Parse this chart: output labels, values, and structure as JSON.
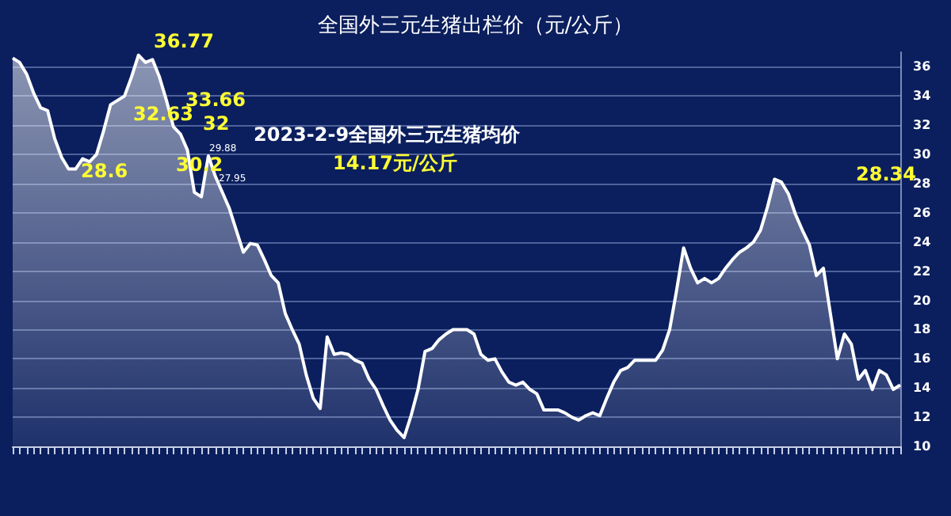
{
  "chart_data": {
    "type": "area",
    "title": "全国外三元生猪出栏价（元/公斤）",
    "categories": [
      null,
      null,
      null,
      null,
      null,
      null,
      null,
      null,
      null,
      null,
      null,
      null,
      null,
      null,
      null,
      null,
      null,
      null,
      null,
      null,
      null,
      null,
      null,
      null,
      null,
      null,
      null,
      null,
      null,
      null,
      null,
      null,
      null,
      null,
      null,
      null,
      null,
      null,
      null,
      null,
      null,
      null,
      null,
      null,
      null,
      null,
      null,
      null,
      null,
      null,
      null,
      null,
      null,
      null,
      null,
      null,
      null,
      null,
      null,
      null,
      null,
      null,
      null,
      null,
      null,
      null,
      null,
      null,
      null,
      null,
      null,
      null,
      null,
      null,
      null,
      null,
      null,
      null,
      null,
      null,
      null,
      null,
      null,
      null,
      null,
      null,
      null,
      null,
      null,
      null,
      null,
      null,
      null,
      null,
      null,
      null,
      null,
      null,
      null,
      null,
      null,
      null,
      null,
      null,
      null,
      null,
      null,
      null,
      null,
      null,
      null,
      null,
      null,
      null,
      null,
      null,
      null,
      null,
      null,
      null,
      null,
      null,
      null,
      null,
      null,
      null,
      null,
      null
    ],
    "series": [
      {
        "color": "#ffffff",
        "values": [
          36.6,
          36.3,
          35.5,
          34.2,
          33.2,
          33.0,
          31.1,
          29.8,
          29.0,
          29.0,
          29.7,
          29.5,
          30.0,
          31.6,
          33.4,
          33.7,
          34.0,
          35.3,
          36.8,
          36.3,
          36.5,
          35.3,
          33.7,
          31.9,
          31.4,
          30.3,
          27.4,
          27.1,
          29.9,
          28.5,
          27.4,
          26.3,
          24.8,
          23.3,
          23.9,
          23.8,
          22.8,
          21.7,
          21.2,
          19.1,
          18.0,
          17.0,
          14.9,
          13.3,
          12.6,
          17.5,
          16.3,
          16.4,
          16.3,
          15.9,
          15.7,
          14.6,
          13.9,
          12.8,
          11.8,
          11.1,
          10.6,
          12.1,
          13.9,
          16.5,
          16.7,
          17.3,
          17.7,
          18.0,
          18.0,
          18.0,
          17.7,
          16.3,
          15.9,
          16.0,
          15.1,
          14.4,
          14.2,
          14.4,
          13.9,
          13.6,
          12.5,
          12.5,
          12.5,
          12.3,
          12.0,
          11.8,
          12.1,
          12.3,
          12.1,
          13.3,
          14.4,
          15.2,
          15.4,
          15.9,
          15.9,
          15.9,
          15.9,
          16.6,
          18.0,
          20.7,
          23.6,
          22.2,
          21.2,
          21.5,
          21.2,
          21.5,
          22.2,
          22.8,
          23.3,
          23.6,
          24.0,
          24.8,
          26.4,
          28.3,
          28.1,
          27.3,
          25.9,
          24.8,
          23.8,
          21.7,
          22.2,
          19.1,
          16.0,
          17.7,
          17.0,
          14.6,
          15.2,
          13.9,
          15.2,
          14.9,
          13.9,
          14.2
        ]
      }
    ],
    "ylim": [
      10,
      37
    ],
    "yticks": [
      10,
      12,
      14,
      16,
      18,
      20,
      22,
      24,
      26,
      28,
      30,
      32,
      34,
      36
    ],
    "grid": "y",
    "marker": "none",
    "annotations": [
      "36.77",
      "32.63",
      "33.66",
      "32",
      "28.6",
      "30.2",
      "29.88",
      "27.95",
      "28.34",
      "2023-2-9全国外三元生猪均价",
      "14.17元/公斤"
    ]
  }
}
